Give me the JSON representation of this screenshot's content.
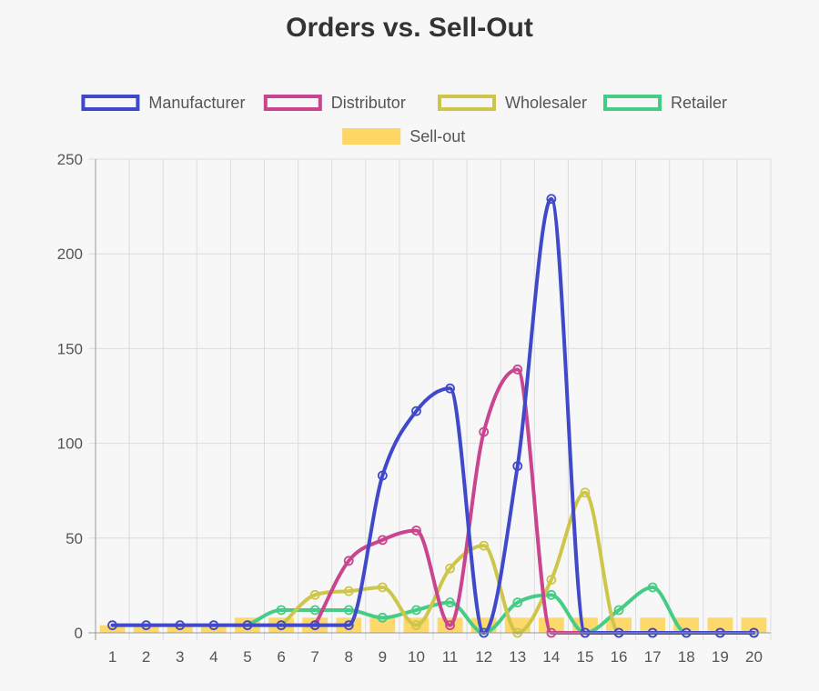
{
  "chart_data": {
    "type": "line",
    "title": "Orders vs. Sell-Out",
    "xlabel": "",
    "ylabel": "",
    "ylim": [
      0,
      250
    ],
    "yticks": [
      0,
      50,
      100,
      150,
      200,
      250
    ],
    "grid": true,
    "legend": "top",
    "categories": [
      "1",
      "2",
      "3",
      "4",
      "5",
      "6",
      "7",
      "8",
      "9",
      "10",
      "11",
      "12",
      "13",
      "14",
      "15",
      "16",
      "17",
      "18",
      "19",
      "20"
    ],
    "series": [
      {
        "name": "Manufacturer",
        "type": "line",
        "color": "#4049c9",
        "values": [
          4,
          4,
          4,
          4,
          4,
          4,
          4,
          4,
          83,
          117,
          129,
          0,
          88,
          229,
          0,
          0,
          0,
          0,
          0,
          0
        ]
      },
      {
        "name": "Distributor",
        "type": "line",
        "color": "#c9458f",
        "values": [
          null,
          null,
          null,
          null,
          null,
          null,
          4,
          38,
          49,
          54,
          4,
          106,
          139,
          0,
          0,
          0,
          0,
          0,
          0,
          0
        ]
      },
      {
        "name": "Wholesaler",
        "type": "line",
        "color": "#cdc64a",
        "values": [
          null,
          null,
          null,
          null,
          null,
          4,
          20,
          22,
          24,
          4,
          34,
          46,
          0,
          28,
          74,
          0,
          0,
          0,
          0,
          0
        ]
      },
      {
        "name": "Retailer",
        "type": "line",
        "color": "#45cc85",
        "values": [
          null,
          null,
          null,
          null,
          4,
          12,
          12,
          12,
          8,
          12,
          16,
          0,
          16,
          20,
          0,
          12,
          24,
          0,
          0,
          0
        ]
      },
      {
        "name": "Sell-out",
        "type": "bar",
        "color": "#fdd663",
        "values": [
          4,
          4,
          4,
          4,
          8,
          8,
          8,
          8,
          8,
          8,
          8,
          8,
          8,
          8,
          8,
          8,
          8,
          8,
          8,
          8
        ]
      }
    ]
  }
}
